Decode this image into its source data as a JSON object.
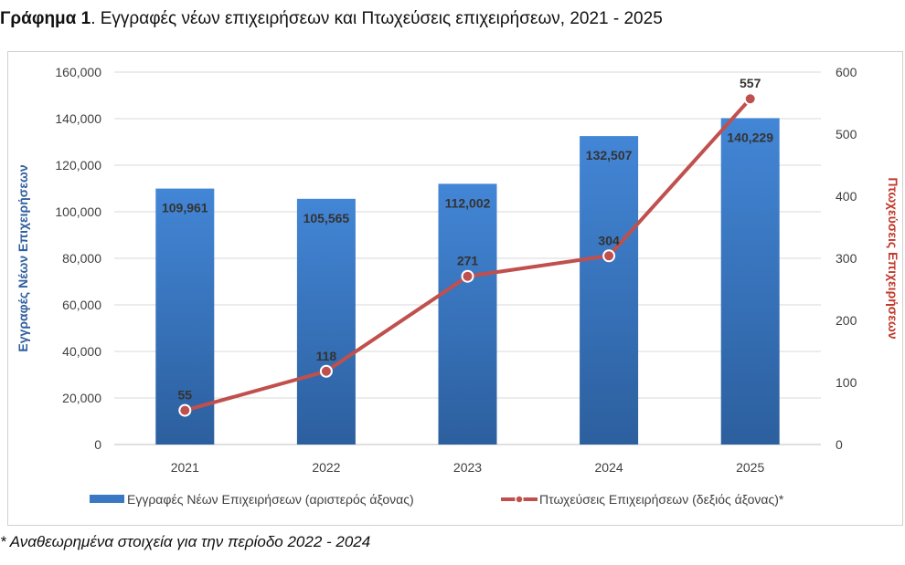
{
  "title_bold": "Γράφημα 1",
  "title_rest": ". Εγγραφές νέων επιχειρήσεων και Πτωχεύσεις επιχειρήσεων, 2021 - 2025",
  "footnote": "* Αναθεωρημένα στοιχεία για την περίοδο 2022 - 2024",
  "chart_data": {
    "type": "bar+line",
    "categories": [
      "2021",
      "2022",
      "2023",
      "2024",
      "2025"
    ],
    "series": [
      {
        "name": "Εγγραφές Νέων Επιχειρήσεων (αριστερός άξονας)",
        "type": "bar",
        "axis": "left",
        "values": [
          109961,
          105565,
          112002,
          132507,
          140229
        ],
        "labels": [
          "109,961",
          "105,565",
          "112,002",
          "132,507",
          "140,229"
        ],
        "color": "#3a78c4"
      },
      {
        "name": "Πτωχεύσεις Επιχειρήσεων (δεξιός άξονας)*",
        "type": "line",
        "axis": "right",
        "values": [
          55,
          118,
          271,
          304,
          557
        ],
        "labels": [
          "55",
          "118",
          "271",
          "304",
          "557"
        ],
        "color": "#c0504d"
      }
    ],
    "ylabel_left": "Εγγραφές Νέων Επιχειρήσεων",
    "ylabel_right": "Πτωχεύσεις Επιχειρήσεων",
    "ylim_left": [
      0,
      160000
    ],
    "ylim_right": [
      0,
      600
    ],
    "yticks_left": [
      "0",
      "20,000",
      "40,000",
      "60,000",
      "80,000",
      "100,000",
      "120,000",
      "140,000",
      "160,000"
    ],
    "yticks_right": [
      "0",
      "100",
      "200",
      "300",
      "400",
      "500",
      "600"
    ],
    "legend_position": "bottom",
    "grid": true
  }
}
